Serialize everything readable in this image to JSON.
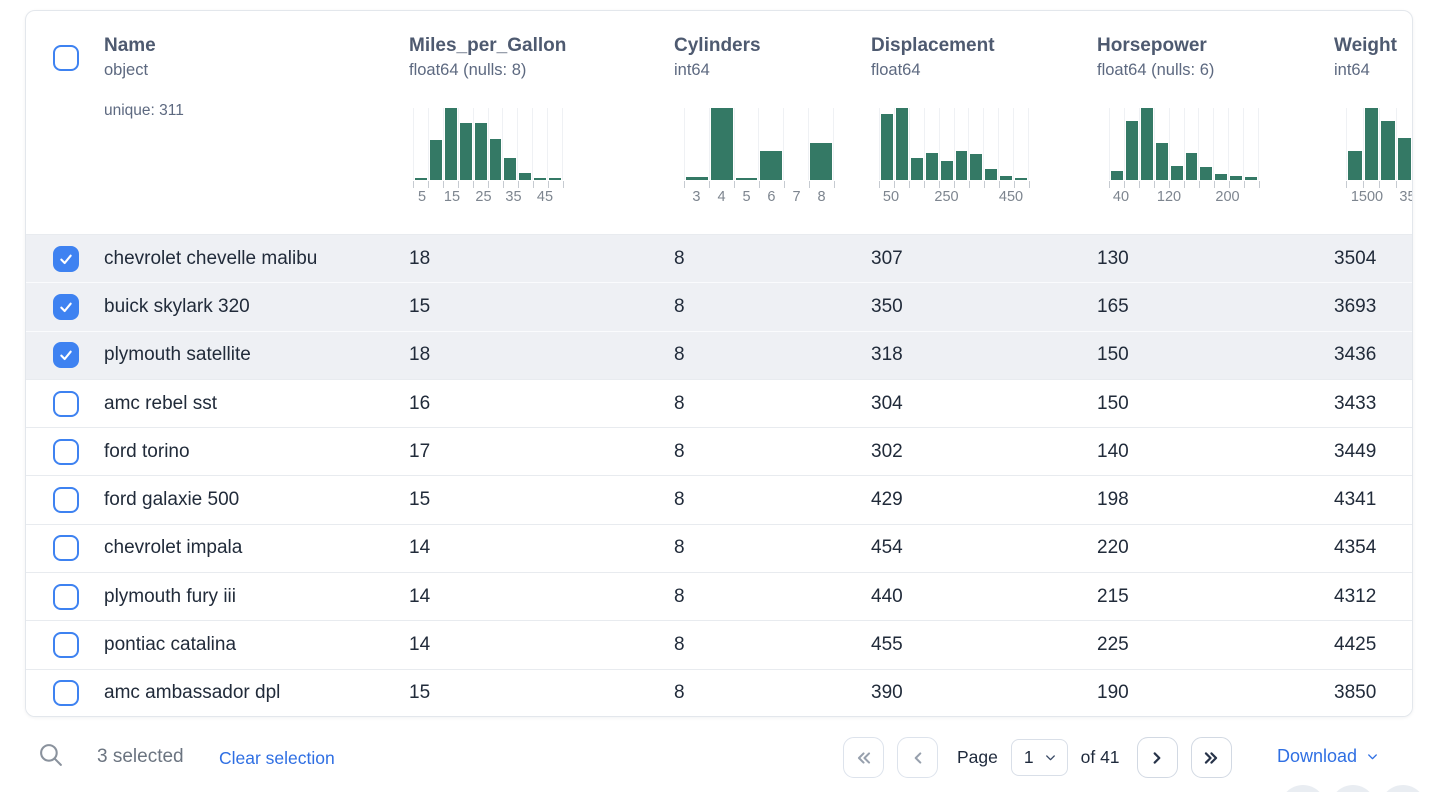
{
  "table": {
    "columns": [
      {
        "title": "Name",
        "type": "object",
        "extra": "unique: 311"
      },
      {
        "title": "Miles_per_Gallon",
        "type": "float64 (nulls: 8)",
        "histogram": {
          "bins": [
            2,
            55,
            100,
            79,
            79,
            57,
            30,
            10,
            2,
            2
          ],
          "labels": [
            {
              "t": "5",
              "f": 0.06
            },
            {
              "t": "15",
              "f": 0.26
            },
            {
              "t": "25",
              "f": 0.47
            },
            {
              "t": "35",
              "f": 0.67
            },
            {
              "t": "45",
              "f": 0.88
            }
          ]
        }
      },
      {
        "title": "Cylinders",
        "type": "int64",
        "histogram": {
          "bins": [
            4,
            100,
            3,
            40,
            0,
            52
          ],
          "labels": [
            {
              "t": "3",
              "f": 0.083
            },
            {
              "t": "4",
              "f": 0.25
            },
            {
              "t": "5",
              "f": 0.417
            },
            {
              "t": "6",
              "f": 0.583
            },
            {
              "t": "7",
              "f": 0.75
            },
            {
              "t": "8",
              "f": 0.917
            }
          ]
        }
      },
      {
        "title": "Displacement",
        "type": "float64",
        "histogram": {
          "bins": [
            92,
            100,
            30,
            38,
            26,
            40,
            36,
            15,
            5,
            1
          ],
          "labels": [
            {
              "t": "50",
              "f": 0.08
            },
            {
              "t": "250",
              "f": 0.45
            },
            {
              "t": "450",
              "f": 0.88
            }
          ]
        }
      },
      {
        "title": "Horsepower",
        "type": "float64 (nulls: 6)",
        "histogram": {
          "bins": [
            13,
            82,
            100,
            52,
            20,
            38,
            18,
            8,
            5,
            4
          ],
          "labels": [
            {
              "t": "40",
              "f": 0.08
            },
            {
              "t": "120",
              "f": 0.4
            },
            {
              "t": "200",
              "f": 0.79
            }
          ]
        }
      },
      {
        "title": "Weight",
        "type": "int64",
        "histogram": {
          "bins": [
            40,
            100,
            82,
            58,
            0,
            0,
            0,
            0,
            0
          ],
          "labels": [
            {
              "t": "1500",
              "f": 0.14
            },
            {
              "t": "35",
              "f": 0.41
            }
          ]
        }
      }
    ],
    "rows": [
      {
        "selected": true,
        "cells": [
          "chevrolet chevelle malibu",
          "18",
          "8",
          "307",
          "130",
          "3504"
        ]
      },
      {
        "selected": true,
        "cells": [
          "buick skylark 320",
          "15",
          "8",
          "350",
          "165",
          "3693"
        ]
      },
      {
        "selected": true,
        "cells": [
          "plymouth satellite",
          "18",
          "8",
          "318",
          "150",
          "3436"
        ]
      },
      {
        "selected": false,
        "cells": [
          "amc rebel sst",
          "16",
          "8",
          "304",
          "150",
          "3433"
        ]
      },
      {
        "selected": false,
        "cells": [
          "ford torino",
          "17",
          "8",
          "302",
          "140",
          "3449"
        ]
      },
      {
        "selected": false,
        "cells": [
          "ford galaxie 500",
          "15",
          "8",
          "429",
          "198",
          "4341"
        ]
      },
      {
        "selected": false,
        "cells": [
          "chevrolet impala",
          "14",
          "8",
          "454",
          "220",
          "4354"
        ]
      },
      {
        "selected": false,
        "cells": [
          "plymouth fury iii",
          "14",
          "8",
          "440",
          "215",
          "4312"
        ]
      },
      {
        "selected": false,
        "cells": [
          "pontiac catalina",
          "14",
          "8",
          "455",
          "225",
          "4425"
        ]
      },
      {
        "selected": false,
        "cells": [
          "amc ambassador dpl",
          "15",
          "8",
          "390",
          "190",
          "3850"
        ]
      }
    ]
  },
  "footer": {
    "selected_count": "3 selected",
    "clear_selection": "Clear selection",
    "page_label": "Page",
    "page_value": "1",
    "of_label": "of 41",
    "download_label": "Download"
  },
  "colors": {
    "accent_blue": "#3e82f1",
    "link_blue": "#2f6fe3",
    "bar_green": "#347965"
  }
}
